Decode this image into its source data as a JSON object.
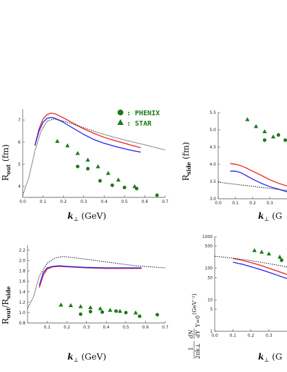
{
  "colors": {
    "red": "#ef2b2b",
    "blue": "#2c2cf0",
    "black": "#111111",
    "green": "#1c7a18"
  },
  "legend": [
    {
      "marker": "circle",
      "label": ": PHENIX"
    },
    {
      "marker": "triangle",
      "label": ": STAR"
    }
  ],
  "chart_data": [
    {
      "id": "rout",
      "type": "line",
      "ylabel_main": "R",
      "ylabel_sub": "out",
      "ylabel_unit": " (fm)",
      "xlabel_main": "k",
      "xlabel_sub": "⊥",
      "xlabel_unit": " (GeV)",
      "xlim": [
        0,
        0.7
      ],
      "ylim": [
        3.5,
        7.5
      ],
      "xticks": [
        0.0,
        0.1,
        0.2,
        0.3,
        0.4,
        0.5,
        0.6,
        0.7
      ],
      "xticklabels": [
        "0.0",
        "0.1",
        "0.2",
        "0.3",
        "0.4",
        "0.5",
        "0.6",
        "0.7"
      ],
      "yticks": [
        4,
        5,
        6,
        7
      ],
      "yticklabels": [
        "4",
        "5",
        "6",
        "7"
      ],
      "series": [
        {
          "color": "red",
          "style": "solid",
          "x": [
            0.06,
            0.08,
            0.1,
            0.12,
            0.14,
            0.16,
            0.2,
            0.25,
            0.3,
            0.35,
            0.4,
            0.45,
            0.5,
            0.55,
            0.58
          ],
          "y": [
            5.85,
            6.6,
            7.05,
            7.25,
            7.32,
            7.28,
            7.1,
            6.85,
            6.6,
            6.4,
            6.22,
            6.08,
            5.95,
            5.82,
            5.75
          ]
        },
        {
          "color": "blue",
          "style": "solid",
          "x": [
            0.06,
            0.08,
            0.1,
            0.12,
            0.14,
            0.16,
            0.2,
            0.25,
            0.3,
            0.35,
            0.4,
            0.45,
            0.5,
            0.55,
            0.58
          ],
          "y": [
            5.85,
            6.5,
            6.9,
            7.08,
            7.12,
            7.08,
            6.9,
            6.62,
            6.35,
            6.12,
            5.95,
            5.82,
            5.7,
            5.6,
            5.55
          ]
        },
        {
          "color": "black",
          "style": "dotted",
          "x": [
            0.0,
            0.03,
            0.06,
            0.09,
            0.12,
            0.15,
            0.18,
            0.22,
            0.3,
            0.4,
            0.5,
            0.6,
            0.7
          ],
          "y": [
            3.6,
            4.4,
            5.6,
            6.5,
            6.95,
            7.05,
            7.0,
            6.9,
            6.65,
            6.35,
            6.1,
            5.88,
            5.65
          ]
        }
      ],
      "points": [
        {
          "marker": "triangle",
          "x": [
            0.17,
            0.22,
            0.27,
            0.32,
            0.37,
            0.42,
            0.47,
            0.55
          ],
          "y": [
            6.05,
            5.85,
            5.5,
            5.2,
            4.9,
            4.6,
            4.3,
            4.0
          ]
        },
        {
          "marker": "circle",
          "x": [
            0.27,
            0.32,
            0.38,
            0.44,
            0.5,
            0.56,
            0.66
          ],
          "y": [
            4.9,
            4.8,
            4.25,
            4.05,
            3.95,
            3.9,
            3.6
          ]
        }
      ]
    },
    {
      "id": "rside",
      "type": "line",
      "ylabel_main": "R",
      "ylabel_sub": "side",
      "ylabel_unit": " (fm)",
      "xlabel_main": "k",
      "xlabel_sub": "⊥",
      "xlabel_unit": " (G",
      "xlim": [
        0,
        0.4
      ],
      "ylim": [
        3.0,
        5.5
      ],
      "xticks": [
        0.0,
        0.1,
        0.2,
        0.3
      ],
      "xticklabels": [
        "0.0",
        "0.1",
        "0.2",
        "0.3"
      ],
      "yticks": [
        3.0,
        3.5,
        4.0,
        4.5,
        5.0,
        5.5
      ],
      "yticklabels": [
        "3.0",
        "3.5",
        "4.0",
        "4.5",
        "5.0",
        "5.5"
      ],
      "series": [
        {
          "color": "red",
          "style": "solid",
          "x": [
            0.07,
            0.1,
            0.13,
            0.16,
            0.2,
            0.25,
            0.3,
            0.35,
            0.4
          ],
          "y": [
            4.02,
            4.0,
            3.96,
            3.9,
            3.8,
            3.68,
            3.55,
            3.45,
            3.37
          ]
        },
        {
          "color": "blue",
          "style": "solid",
          "x": [
            0.07,
            0.1,
            0.13,
            0.16,
            0.2,
            0.25,
            0.3,
            0.35,
            0.4
          ],
          "y": [
            3.8,
            3.8,
            3.76,
            3.68,
            3.57,
            3.45,
            3.35,
            3.28,
            3.2
          ]
        },
        {
          "color": "black",
          "style": "dotted",
          "x": [
            0.0,
            0.1,
            0.2,
            0.3,
            0.4
          ],
          "y": [
            3.48,
            3.42,
            3.36,
            3.3,
            3.24
          ]
        }
      ],
      "points": [
        {
          "marker": "triangle",
          "x": [
            0.17,
            0.22,
            0.27,
            0.32
          ],
          "y": [
            5.3,
            5.1,
            4.95,
            4.8
          ]
        },
        {
          "marker": "circle",
          "x": [
            0.27,
            0.35,
            0.39
          ],
          "y": [
            4.7,
            4.85,
            4.7
          ]
        }
      ]
    },
    {
      "id": "ratio",
      "type": "line",
      "ylabel_main": "R",
      "ylabel_sub": "out",
      "ylabel_mid": "/R",
      "ylabel_sub2": "side",
      "xlabel_main": "k",
      "xlabel_sub": "⊥",
      "xlabel_unit": " (GeV)",
      "xlim": [
        0,
        0.7
      ],
      "ylim": [
        0.8,
        2.3
      ],
      "xticks": [
        0.1,
        0.2,
        0.3,
        0.4,
        0.5,
        0.6,
        0.7
      ],
      "xticklabels": [
        "0.1",
        "0.2",
        "0.3",
        "0.4",
        "0.5",
        "0.6",
        "0.7"
      ],
      "yticks": [
        0.8,
        1.0,
        1.2,
        1.4,
        1.6,
        1.8,
        2.0,
        2.2
      ],
      "yticklabels": [
        "0.8",
        "1.0",
        "1.2",
        "1.4",
        "1.6",
        "1.8",
        "2.0",
        "2.2"
      ],
      "series": [
        {
          "color": "red",
          "style": "solid",
          "x": [
            0.06,
            0.08,
            0.1,
            0.13,
            0.16,
            0.2,
            0.3,
            0.4,
            0.5,
            0.58
          ],
          "y": [
            1.48,
            1.72,
            1.84,
            1.88,
            1.89,
            1.88,
            1.86,
            1.85,
            1.85,
            1.85
          ]
        },
        {
          "color": "blue",
          "style": "solid",
          "x": [
            0.06,
            0.08,
            0.1,
            0.13,
            0.16,
            0.2,
            0.3,
            0.4,
            0.5,
            0.58
          ],
          "y": [
            1.52,
            1.77,
            1.86,
            1.89,
            1.9,
            1.89,
            1.87,
            1.86,
            1.86,
            1.86
          ]
        },
        {
          "color": "black",
          "style": "dotted",
          "x": [
            0.0,
            0.03,
            0.06,
            0.1,
            0.14,
            0.18,
            0.25,
            0.35,
            0.45,
            0.55,
            0.7
          ],
          "y": [
            1.08,
            1.3,
            1.7,
            1.95,
            2.05,
            2.08,
            2.05,
            2.0,
            1.95,
            1.9,
            1.86
          ]
        }
      ],
      "points": [
        {
          "marker": "triangle",
          "x": [
            0.17,
            0.22,
            0.27,
            0.32,
            0.37,
            0.42,
            0.47,
            0.55
          ],
          "y": [
            1.15,
            1.14,
            1.12,
            1.1,
            1.08,
            1.05,
            1.03,
            1.0
          ]
        },
        {
          "marker": "circle",
          "x": [
            0.27,
            0.32,
            0.38,
            0.45,
            0.5,
            0.57,
            0.66
          ],
          "y": [
            0.97,
            1.02,
            1.01,
            1.03,
            1.0,
            0.93,
            0.96
          ]
        }
      ]
    },
    {
      "id": "spectrum",
      "type": "line",
      "ylabel_unit": "(GeV⁻²)",
      "ylabel_frac_num": "1",
      "ylabel_frac_den": "2πk⊥",
      "ylabel_frac2_num": "dN",
      "ylabel_frac2_den": "dY",
      "ylabel_eval": "Y=0",
      "xlabel_main": "k",
      "xlabel_sub": "⊥",
      "xlabel_unit": " (G",
      "xlim": [
        0,
        0.4
      ],
      "ylog": true,
      "ylim": [
        1,
        1000
      ],
      "xticks": [
        0.0,
        0.1,
        0.2,
        0.3
      ],
      "xticklabels": [
        "0.0",
        "0.1",
        "0.2",
        "0.3"
      ],
      "yticks": [
        1,
        5,
        10,
        50,
        100,
        500,
        1000
      ],
      "yticklabels": [
        "1",
        "5",
        "10",
        "50",
        "100",
        "500",
        "1000"
      ],
      "series": [
        {
          "color": "red",
          "style": "solid",
          "x": [
            0.1,
            0.15,
            0.2,
            0.25,
            0.3,
            0.35,
            0.4
          ],
          "y": [
            205,
            180,
            152,
            125,
            100,
            80,
            63
          ]
        },
        {
          "color": "blue",
          "style": "solid",
          "x": [
            0.1,
            0.15,
            0.2,
            0.25,
            0.3,
            0.35,
            0.4
          ],
          "y": [
            155,
            135,
            112,
            92,
            74,
            59,
            47
          ]
        },
        {
          "color": "black",
          "style": "dotted",
          "x": [
            0.0,
            0.1,
            0.2,
            0.3,
            0.4
          ],
          "y": [
            240,
            210,
            175,
            140,
            110
          ]
        }
      ],
      "points": [
        {
          "marker": "triangle",
          "x": [
            0.22,
            0.26,
            0.3,
            0.36
          ],
          "y": [
            370,
            330,
            290,
            230
          ]
        },
        {
          "marker": "circle",
          "x": [
            0.37
          ],
          "y": [
            180
          ]
        }
      ]
    }
  ]
}
